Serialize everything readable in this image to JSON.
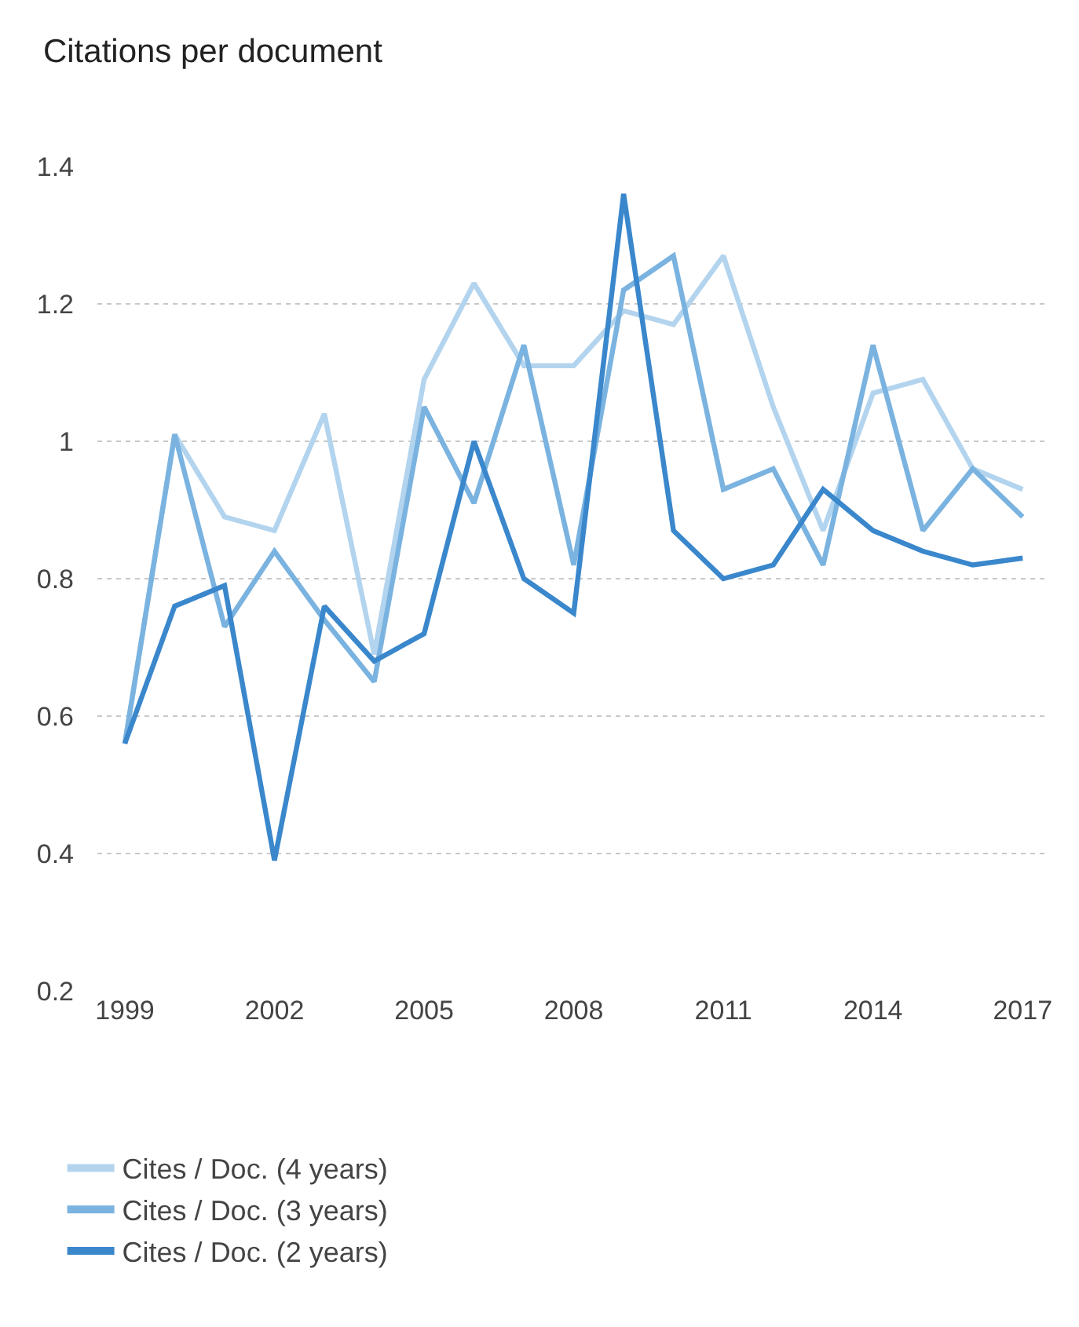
{
  "chart_data": {
    "type": "line",
    "title": "Citations per document",
    "x": [
      1999,
      2000,
      2001,
      2002,
      2003,
      2004,
      2005,
      2006,
      2007,
      2008,
      2009,
      2010,
      2011,
      2012,
      2013,
      2014,
      2015,
      2016,
      2017
    ],
    "series": [
      {
        "name": "Cites / Doc. (4 years)",
        "color": "#b3d4ee",
        "values": [
          0.56,
          1.01,
          0.89,
          0.87,
          1.04,
          0.69,
          1.09,
          1.23,
          1.11,
          1.11,
          1.19,
          1.17,
          1.27,
          1.05,
          0.87,
          1.07,
          1.09,
          0.96,
          0.93
        ]
      },
      {
        "name": "Cites / Doc. (3 years)",
        "color": "#7ab3e0",
        "values": [
          0.56,
          1.01,
          0.73,
          0.84,
          0.74,
          0.65,
          1.05,
          0.91,
          1.14,
          0.82,
          1.22,
          1.27,
          0.93,
          0.96,
          0.82,
          1.14,
          0.87,
          0.96,
          0.89
        ]
      },
      {
        "name": "Cites / Doc. (2 years)",
        "color": "#3a87cc",
        "values": [
          0.56,
          0.76,
          0.79,
          0.39,
          0.76,
          0.68,
          0.72,
          1.0,
          0.8,
          0.75,
          1.36,
          0.87,
          0.8,
          0.82,
          0.93,
          0.87,
          0.84,
          0.82,
          0.83
        ]
      }
    ],
    "xlim": [
      1998.45,
      2017.5
    ],
    "ylim": [
      0.2,
      1.4
    ],
    "xticks": [
      1999,
      2002,
      2005,
      2008,
      2011,
      2014,
      2017
    ],
    "yticks": [
      {
        "value": 0.2,
        "label": "0.2"
      },
      {
        "value": 0.4,
        "label": "0.4"
      },
      {
        "value": 0.6,
        "label": "0.6"
      },
      {
        "value": 0.8,
        "label": "0.8"
      },
      {
        "value": 1,
        "label": "1"
      },
      {
        "value": 1.2,
        "label": "1.2"
      },
      {
        "value": 1.4,
        "label": "1.4"
      }
    ],
    "grid": "y",
    "legend": "bottom left",
    "marker": "none",
    "line_style": "solid"
  }
}
